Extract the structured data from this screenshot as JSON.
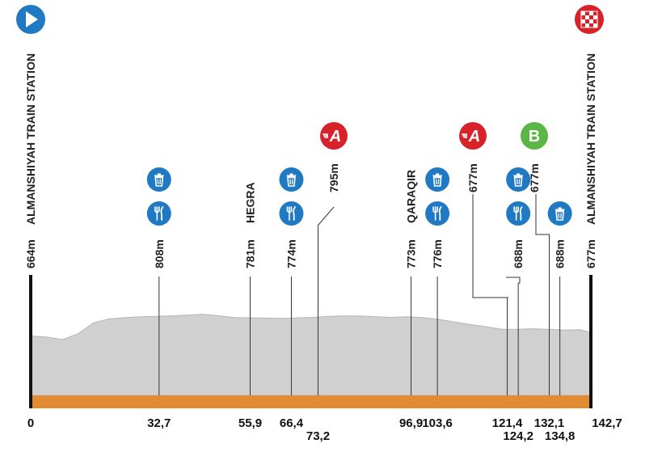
{
  "chart_data": {
    "type": "area",
    "title": "",
    "xlabel": "",
    "ylabel": "",
    "xlim": [
      0,
      142.7
    ],
    "grid": false,
    "legend": "none",
    "colors": {
      "profile_fill": "#d0d0d0",
      "profile_edge": "#b5b5b5",
      "road": "#e38b33",
      "marker_line": "#333333",
      "blue_badge": "#1f7ac3",
      "red_badge": "#d72229",
      "green_badge": "#5ab645"
    },
    "profile": {
      "x": [
        0,
        4,
        8,
        12,
        16,
        20,
        24,
        28,
        32,
        36,
        40,
        44,
        48,
        52,
        56,
        60,
        64,
        68,
        72,
        76,
        80,
        84,
        88,
        92,
        96,
        100,
        104,
        108,
        112,
        116,
        120,
        124,
        128,
        132,
        136,
        140,
        142.7
      ],
      "y": [
        664,
        660,
        650,
        672,
        715,
        730,
        735,
        738,
        740,
        742,
        745,
        748,
        742,
        735,
        734,
        733,
        732,
        734,
        736,
        740,
        742,
        741,
        738,
        736,
        738,
        735,
        728,
        718,
        708,
        700,
        690,
        690,
        692,
        690,
        687,
        688,
        677
      ]
    },
    "start": {
      "name": "ALMANSHIYAH TRAIN STATION",
      "elevation": "664m",
      "km": "0"
    },
    "finish": {
      "name": "ALMANSHIYAH TRAIN STATION",
      "elevation": "677m",
      "km": "142,7"
    },
    "markers": [
      {
        "km": 32.7,
        "km_label": "32,7",
        "elevation": "808m",
        "name": "",
        "icons": [
          "waste-zone-icon",
          "feed-zone-icon"
        ]
      },
      {
        "km": 55.9,
        "km_label": "55,9",
        "elevation": "781m",
        "name": "HEGRA",
        "icons": []
      },
      {
        "km": 66.4,
        "km_label": "66,4",
        "elevation": "774m",
        "name": "",
        "icons": [
          "waste-zone-icon",
          "feed-zone-icon"
        ]
      },
      {
        "km": 73.2,
        "km_label": "73,2",
        "elevation": "795m",
        "name": "",
        "icons": [],
        "sprint": "A"
      },
      {
        "km": 96.9,
        "km_label": "96,9",
        "elevation": "773m",
        "name": "QARAQIR",
        "icons": []
      },
      {
        "km": 103.6,
        "km_label": "103,6",
        "elevation": "776m",
        "name": "",
        "icons": [
          "waste-zone-icon",
          "feed-zone-icon"
        ]
      },
      {
        "km": 121.4,
        "km_label": "121,4",
        "elevation": "677m",
        "name": "",
        "icons": [],
        "sprint": "A"
      },
      {
        "km": 124.2,
        "km_label": "124,2",
        "elevation": "688m",
        "name": "",
        "icons": [
          "waste-zone-icon",
          "feed-zone-icon"
        ]
      },
      {
        "km": 132.1,
        "km_label": "132,1",
        "elevation": "677m",
        "name": "",
        "icons": [],
        "bonus": "B"
      },
      {
        "km": 134.8,
        "km_label": "134,8",
        "elevation": "688m",
        "name": "",
        "icons": [
          "waste-zone-icon"
        ]
      }
    ]
  }
}
